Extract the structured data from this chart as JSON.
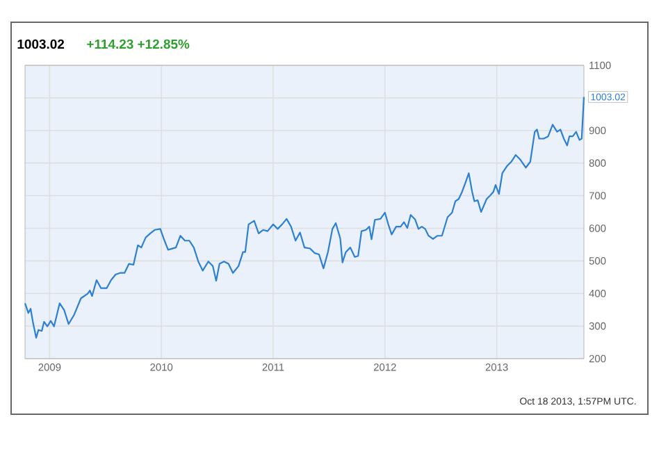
{
  "chart_data": {
    "type": "line",
    "title": "1003.02",
    "subtitle": "+114.23  +12.85%",
    "x": [
      2008.78,
      2008.81,
      2008.83,
      2008.85,
      2008.88,
      2008.9,
      2008.93,
      2008.95,
      2008.98,
      2009.01,
      2009.04,
      2009.09,
      2009.13,
      2009.17,
      2009.22,
      2009.28,
      2009.34,
      2009.36,
      2009.38,
      2009.42,
      2009.46,
      2009.51,
      2009.55,
      2009.59,
      2009.63,
      2009.67,
      2009.71,
      2009.75,
      2009.79,
      2009.82,
      2009.86,
      2009.9,
      2009.94,
      2009.99,
      2010.02,
      2010.06,
      2010.13,
      2010.17,
      2010.21,
      2010.25,
      2010.29,
      2010.33,
      2010.37,
      2010.42,
      2010.46,
      2010.49,
      2010.52,
      2010.56,
      2010.6,
      2010.64,
      2010.69,
      2010.73,
      2010.75,
      2010.78,
      2010.83,
      2010.87,
      2010.91,
      2010.95,
      2011.0,
      2011.04,
      2011.08,
      2011.12,
      2011.16,
      2011.2,
      2011.24,
      2011.28,
      2011.33,
      2011.37,
      2011.41,
      2011.45,
      2011.49,
      2011.53,
      2011.56,
      2011.6,
      2011.62,
      2011.65,
      2011.69,
      2011.73,
      2011.76,
      2011.79,
      2011.83,
      2011.86,
      2011.88,
      2011.91,
      2011.96,
      2012.0,
      2012.03,
      2012.06,
      2012.1,
      2012.14,
      2012.17,
      2012.2,
      2012.23,
      2012.27,
      2012.3,
      2012.33,
      2012.36,
      2012.39,
      2012.43,
      2012.47,
      2012.51,
      2012.56,
      2012.6,
      2012.63,
      2012.66,
      2012.69,
      2012.72,
      2012.75,
      2012.78,
      2012.8,
      2012.83,
      2012.86,
      2012.91,
      2012.94,
      2012.97,
      2012.99,
      2013.02,
      2013.05,
      2013.09,
      2013.13,
      2013.17,
      2013.21,
      2013.26,
      2013.3,
      2013.34,
      2013.36,
      2013.38,
      2013.42,
      2013.46,
      2013.5,
      2013.54,
      2013.57,
      2013.6,
      2013.63,
      2013.65,
      2013.68,
      2013.71,
      2013.74,
      2013.76,
      2013.78
    ],
    "series": [
      {
        "color": "#2b7fd4",
        "values": [
          370,
          340,
          353,
          313,
          264,
          288,
          285,
          313,
          299,
          316,
          299,
          370,
          349,
          306,
          335,
          385,
          399,
          409,
          392,
          441,
          416,
          416,
          441,
          458,
          463,
          463,
          491,
          488,
          548,
          541,
          572,
          584,
          595,
          598,
          569,
          534,
          541,
          577,
          562,
          562,
          541,
          498,
          470,
          498,
          484,
          439,
          491,
          498,
          491,
          463,
          484,
          527,
          527,
          612,
          623,
          584,
          595,
          591,
          612,
          598,
          612,
          629,
          605,
          562,
          587,
          541,
          538,
          524,
          520,
          477,
          527,
          598,
          616,
          569,
          495,
          527,
          541,
          512,
          515,
          591,
          595,
          605,
          566,
          626,
          629,
          648,
          612,
          581,
          605,
          605,
          619,
          601,
          641,
          627,
          598,
          605,
          598,
          577,
          567,
          577,
          577,
          634,
          648,
          683,
          690,
          712,
          740,
          769,
          712,
          683,
          686,
          650,
          690,
          700,
          712,
          733,
          705,
          769,
          790,
          804,
          825,
          811,
          786,
          804,
          896,
          903,
          875,
          875,
          882,
          918,
          896,
          903,
          875,
          854,
          882,
          882,
          896,
          871,
          875,
          1003.02
        ]
      }
    ],
    "xlim": [
      2008.78,
      2013.78
    ],
    "ylim": [
      200,
      1100
    ],
    "xticks": [
      2009,
      2010,
      2011,
      2012,
      2013
    ],
    "yticks": [
      200,
      300,
      400,
      500,
      600,
      700,
      800,
      900,
      {
        "value": 1000,
        "label": null
      },
      1100
    ],
    "grid": true,
    "annotations": [
      {
        "text": "1003.02",
        "x": 2013.78,
        "y": 1003.02
      },
      "Oct 18 2013, 1:57PM UTC."
    ]
  }
}
